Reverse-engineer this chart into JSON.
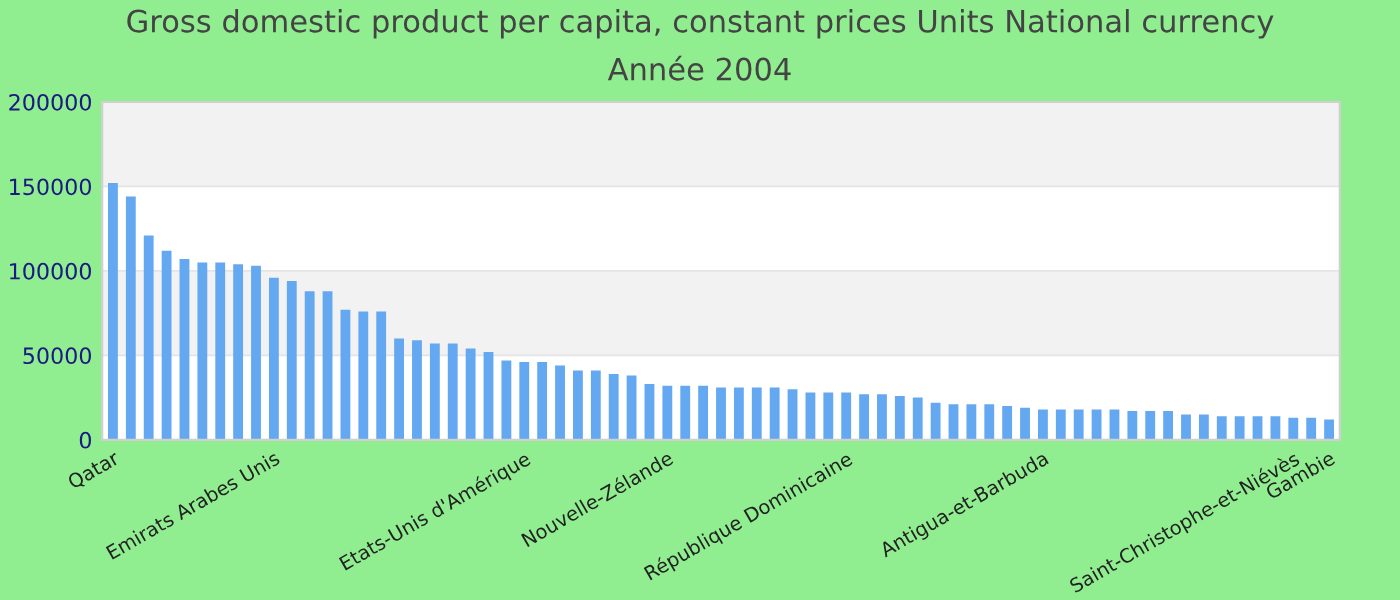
{
  "chart_data": {
    "type": "bar",
    "title": "Gross domestic product per capita, constant prices Units National currency",
    "subtitle": "Année 2004",
    "categories": [
      "Qatar",
      null,
      null,
      null,
      null,
      null,
      null,
      null,
      null,
      "Emirats Arabes Unis",
      null,
      null,
      null,
      null,
      null,
      null,
      null,
      null,
      null,
      null,
      null,
      null,
      null,
      "Etats-Unis d'Amérique",
      null,
      null,
      null,
      null,
      null,
      null,
      null,
      "Nouvelle-Zélande",
      null,
      null,
      null,
      null,
      null,
      null,
      null,
      null,
      null,
      "République Dominicaine",
      null,
      null,
      null,
      null,
      null,
      null,
      null,
      null,
      null,
      null,
      "Antigua-et-Barbuda",
      null,
      null,
      null,
      null,
      null,
      null,
      null,
      null,
      null,
      null,
      null,
      null,
      null,
      "Saint-Christophe-et-Niévès",
      null,
      "Gambie"
    ],
    "values": [
      152000,
      144000,
      121000,
      112000,
      107000,
      105000,
      105000,
      104000,
      103000,
      96000,
      94000,
      88000,
      88000,
      77000,
      76000,
      76000,
      60000,
      59000,
      57000,
      57000,
      54000,
      52000,
      47000,
      46000,
      46000,
      44000,
      41000,
      41000,
      39000,
      38000,
      33000,
      32000,
      32000,
      32000,
      31000,
      31000,
      31000,
      31000,
      30000,
      28000,
      28000,
      28000,
      27000,
      27000,
      26000,
      25000,
      22000,
      21000,
      21000,
      21000,
      20000,
      19000,
      18000,
      18000,
      18000,
      18000,
      18000,
      17000,
      17000,
      17000,
      15000,
      15000,
      14000,
      14000,
      14000,
      14000,
      13000,
      13000,
      12000
    ],
    "color": "#63a8f0",
    "ylim": [
      0,
      200000
    ],
    "yticks": [
      0,
      50000,
      100000,
      150000,
      200000
    ],
    "grid": "y"
  }
}
